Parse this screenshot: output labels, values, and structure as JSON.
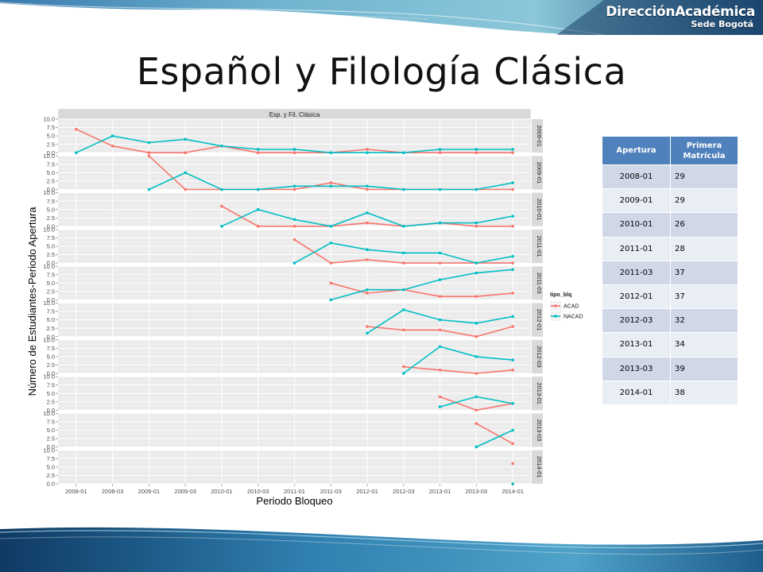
{
  "header": {
    "brand_title": "DirecciónAcadémica",
    "brand_subtitle": "Sede Bogotá"
  },
  "slide": {
    "title": "Español y Filología Clásica"
  },
  "colors": {
    "acad": "#f8766d",
    "nacad": "#00bfc4",
    "panel_bg": "#ebebeb",
    "strip_bg": "#d9d9d9",
    "table_header": "#4f81bd",
    "table_row_odd": "#d0d8e8",
    "table_row_even": "#e9edf4"
  },
  "chart_data": {
    "type": "line",
    "facet_title": "Esp. y Fil. Clásica",
    "xlabel": "Periodo Bloqueo",
    "ylabel": "Número de Estudiantes-Periodo Apertura",
    "ylim": [
      0,
      10
    ],
    "y_ticks": [
      "0.0",
      "2.5",
      "5.0",
      "7.5",
      "10.0"
    ],
    "categories": [
      "2008-01",
      "2008-03",
      "2009-01",
      "2009-03",
      "2010-01",
      "2010-03",
      "2011-01",
      "2011-03",
      "2012-01",
      "2012-03",
      "2013-01",
      "2013-03",
      "2014-01"
    ],
    "legend": {
      "title": "tipo_blq",
      "position": "right",
      "entries": [
        "ACAD",
        "NACAD"
      ]
    },
    "grid": true,
    "panels": [
      {
        "label": "2008-01",
        "series": [
          {
            "name": "ACAD",
            "values": [
              7,
              2,
              0,
              0,
              2,
              0,
              0,
              0,
              1,
              0,
              0,
              0,
              0
            ]
          },
          {
            "name": "NACAD",
            "values": [
              0,
              5,
              3,
              4,
              2,
              1,
              1,
              0,
              0,
              0,
              1,
              1,
              1
            ]
          }
        ]
      },
      {
        "label": "2009-01",
        "series": [
          {
            "name": "ACAD",
            "values": [
              null,
              null,
              10,
              0,
              0,
              0,
              0,
              2,
              0,
              0,
              0,
              0,
              0
            ]
          },
          {
            "name": "NACAD",
            "values": [
              null,
              null,
              0,
              5,
              0,
              0,
              1,
              1,
              1,
              0,
              0,
              0,
              2
            ]
          }
        ]
      },
      {
        "label": "2010-01",
        "series": [
          {
            "name": "ACAD",
            "values": [
              null,
              null,
              null,
              null,
              6,
              0,
              0,
              0,
              1,
              0,
              1,
              0,
              0
            ]
          },
          {
            "name": "NACAD",
            "values": [
              null,
              null,
              null,
              null,
              0,
              5,
              2,
              0,
              4,
              0,
              1,
              1,
              3
            ]
          }
        ]
      },
      {
        "label": "2011-01",
        "series": [
          {
            "name": "ACAD",
            "values": [
              null,
              null,
              null,
              null,
              null,
              null,
              7,
              0,
              1,
              0,
              0,
              0,
              0
            ]
          },
          {
            "name": "NACAD",
            "values": [
              null,
              null,
              null,
              null,
              null,
              null,
              0,
              6,
              4,
              3,
              3,
              0,
              2
            ]
          }
        ]
      },
      {
        "label": "2011-03",
        "series": [
          {
            "name": "ACAD",
            "values": [
              null,
              null,
              null,
              null,
              null,
              null,
              null,
              5,
              2,
              3,
              1,
              1,
              2
            ]
          },
          {
            "name": "NACAD",
            "values": [
              null,
              null,
              null,
              null,
              null,
              null,
              null,
              0,
              3,
              3,
              6,
              8,
              9
            ]
          }
        ]
      },
      {
        "label": "2012-01",
        "series": [
          {
            "name": "ACAD",
            "values": [
              null,
              null,
              null,
              null,
              null,
              null,
              null,
              null,
              3,
              2,
              2,
              0,
              3
            ]
          },
          {
            "name": "NACAD",
            "values": [
              null,
              null,
              null,
              null,
              null,
              null,
              null,
              null,
              1,
              8,
              5,
              4,
              6
            ]
          }
        ]
      },
      {
        "label": "2012-03",
        "series": [
          {
            "name": "ACAD",
            "values": [
              null,
              null,
              null,
              null,
              null,
              null,
              null,
              null,
              null,
              2,
              1,
              0,
              1
            ]
          },
          {
            "name": "NACAD",
            "values": [
              null,
              null,
              null,
              null,
              null,
              null,
              null,
              null,
              null,
              0,
              8,
              5,
              4
            ]
          }
        ]
      },
      {
        "label": "2013-01",
        "series": [
          {
            "name": "ACAD",
            "values": [
              null,
              null,
              null,
              null,
              null,
              null,
              null,
              null,
              null,
              null,
              4,
              0,
              2
            ]
          },
          {
            "name": "NACAD",
            "values": [
              null,
              null,
              null,
              null,
              null,
              null,
              null,
              null,
              null,
              null,
              1,
              4,
              2
            ]
          }
        ]
      },
      {
        "label": "2013-03",
        "series": [
          {
            "name": "ACAD",
            "values": [
              null,
              null,
              null,
              null,
              null,
              null,
              null,
              null,
              null,
              null,
              null,
              7,
              1
            ]
          },
          {
            "name": "NACAD",
            "values": [
              null,
              null,
              null,
              null,
              null,
              null,
              null,
              null,
              null,
              null,
              null,
              0,
              5
            ]
          }
        ]
      },
      {
        "label": "2014-01",
        "series": [
          {
            "name": "ACAD",
            "values": [
              null,
              null,
              null,
              null,
              null,
              null,
              null,
              null,
              null,
              null,
              null,
              null,
              6
            ]
          },
          {
            "name": "NACAD",
            "values": [
              null,
              null,
              null,
              null,
              null,
              null,
              null,
              null,
              null,
              null,
              null,
              null,
              0
            ]
          }
        ]
      }
    ]
  },
  "table": {
    "headers": [
      "Apertura",
      "Primera Matrícula"
    ],
    "rows": [
      [
        "2008-01",
        "29"
      ],
      [
        "2009-01",
        "29"
      ],
      [
        "2010-01",
        "26"
      ],
      [
        "2011-01",
        "28"
      ],
      [
        "2011-03",
        "37"
      ],
      [
        "2012-01",
        "37"
      ],
      [
        "2012-03",
        "32"
      ],
      [
        "2013-01",
        "34"
      ],
      [
        "2013-03",
        "39"
      ],
      [
        "2014-01",
        "38"
      ]
    ]
  }
}
